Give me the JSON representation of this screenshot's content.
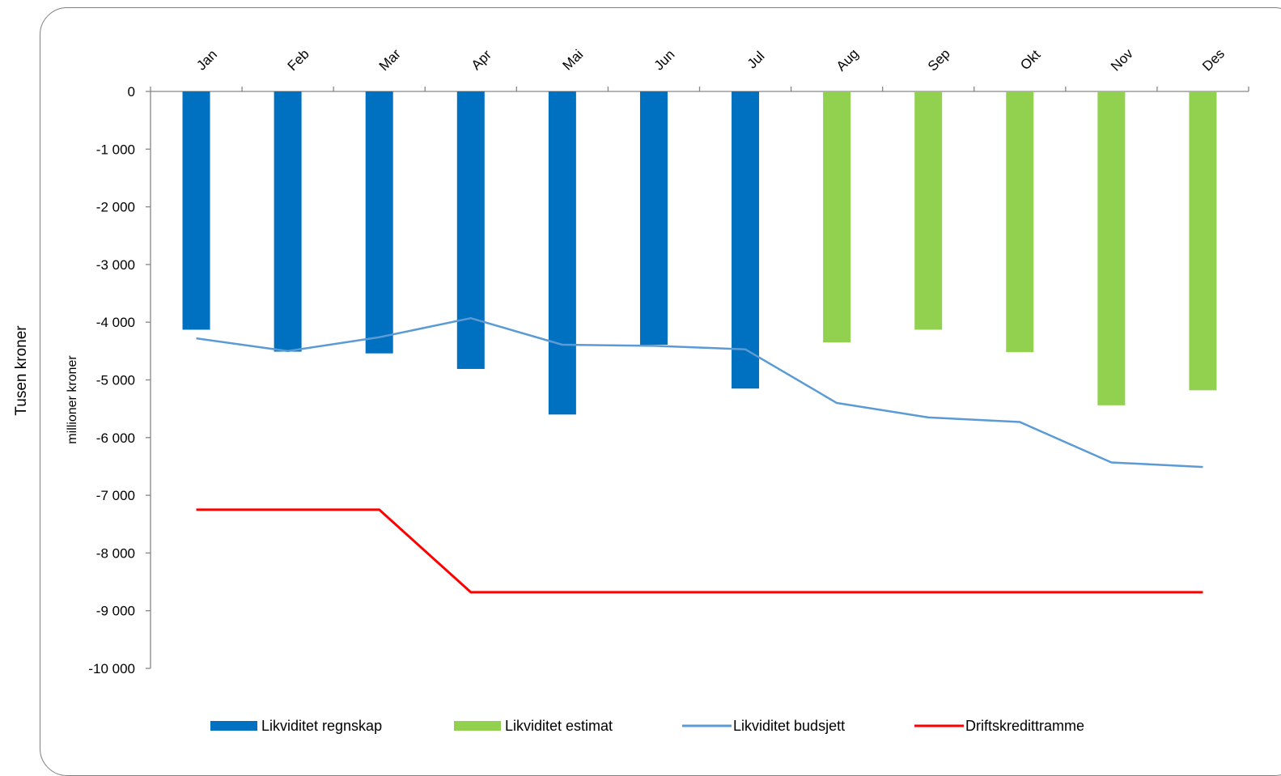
{
  "outer_ylabel": "Tusen kroner",
  "chart_data": {
    "type": "bar",
    "categories": [
      "Jan",
      "Feb",
      "Mar",
      "Apr",
      "Mai",
      "Jun",
      "Jul",
      "Aug",
      "Sep",
      "Okt",
      "Nov",
      "Des"
    ],
    "ylabel": "millioner kroner",
    "ylim": [
      -10000,
      0
    ],
    "yticks": [
      0,
      -1000,
      -2000,
      -3000,
      -4000,
      -5000,
      -6000,
      -7000,
      -8000,
      -9000,
      -10000
    ],
    "ytick_labels": [
      "0",
      "-1 000",
      "-2 000",
      "-3 000",
      "-4 000",
      "-5 000",
      "-6 000",
      "-7 000",
      "-8 000",
      "-9 000",
      "-10 000"
    ],
    "x_axis_position": "top",
    "grid": false,
    "legend_position": "bottom",
    "series": [
      {
        "name": "Likviditet regnskap",
        "kind": "bar",
        "color": "#0070C0",
        "values": [
          -4130,
          -4510,
          -4540,
          -4810,
          -5600,
          -4390,
          -5150,
          null,
          null,
          null,
          null,
          null
        ]
      },
      {
        "name": "Likviditet estimat",
        "kind": "bar",
        "color": "#92D050",
        "values": [
          null,
          null,
          null,
          null,
          null,
          null,
          null,
          -4350,
          -4130,
          -4520,
          -5440,
          -5180
        ]
      },
      {
        "name": "Likviditet budsjett",
        "kind": "line",
        "color": "#5B9BD5",
        "values": [
          -4280,
          -4500,
          -4260,
          -3930,
          -4390,
          -4410,
          -4470,
          -5400,
          -5650,
          -5730,
          -6430,
          -6510
        ]
      },
      {
        "name": "Driftskredittramme",
        "kind": "line",
        "color": "#FF0000",
        "values": [
          -7250,
          -7250,
          -7250,
          -8680,
          -8680,
          -8680,
          -8680,
          -8680,
          -8680,
          -8680,
          -8680,
          -8680
        ]
      }
    ]
  }
}
